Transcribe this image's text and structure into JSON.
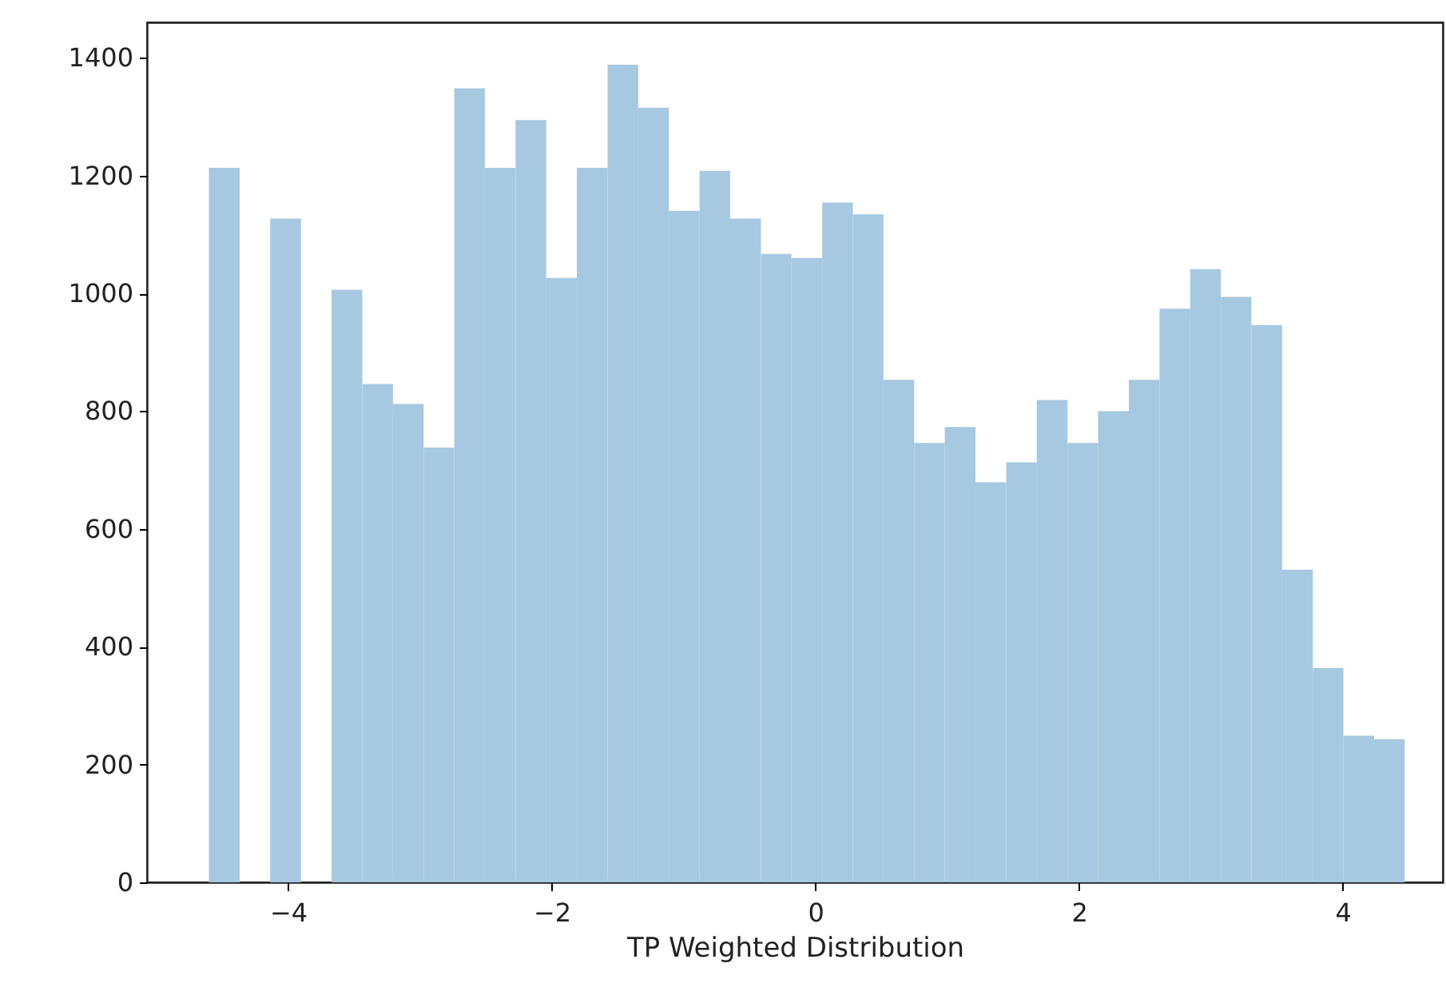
{
  "chart_data": {
    "type": "histogram",
    "xlabel": "TP Weighted Distribution",
    "color": "#a6c8e0",
    "bins": [
      -4.6,
      -4.367,
      -4.135,
      -3.902,
      -3.67,
      -3.437,
      -3.204,
      -2.972,
      -2.739,
      -2.507,
      -2.274,
      -2.041,
      -1.809,
      -1.576,
      -1.344,
      -1.111,
      -0.878,
      -0.646,
      -0.413,
      -0.181,
      0.052,
      0.285,
      0.517,
      0.75,
      0.982,
      1.215,
      1.448,
      1.68,
      1.913,
      2.145,
      2.378,
      2.611,
      2.843,
      3.076,
      3.308,
      3.541,
      3.774,
      4.006,
      4.239,
      4.471
    ],
    "values": [
      1213,
      0,
      1127,
      0,
      1006,
      846,
      812,
      738,
      1348,
      1213,
      1294,
      1026,
      1213,
      1388,
      1315,
      1140,
      1208,
      1127,
      1067,
      1060,
      1154,
      1134,
      853,
      746,
      773,
      679,
      713,
      819,
      746,
      800,
      853,
      974,
      1041,
      994,
      946,
      531,
      364,
      249,
      243
    ],
    "xlim": [
      -5.07,
      4.76
    ],
    "xticks": [
      -4,
      -2,
      0,
      2,
      4
    ],
    "ylim": [
      0,
      1460
    ],
    "yticks": [
      0,
      200,
      400,
      600,
      800,
      1000,
      1200,
      1400
    ]
  }
}
